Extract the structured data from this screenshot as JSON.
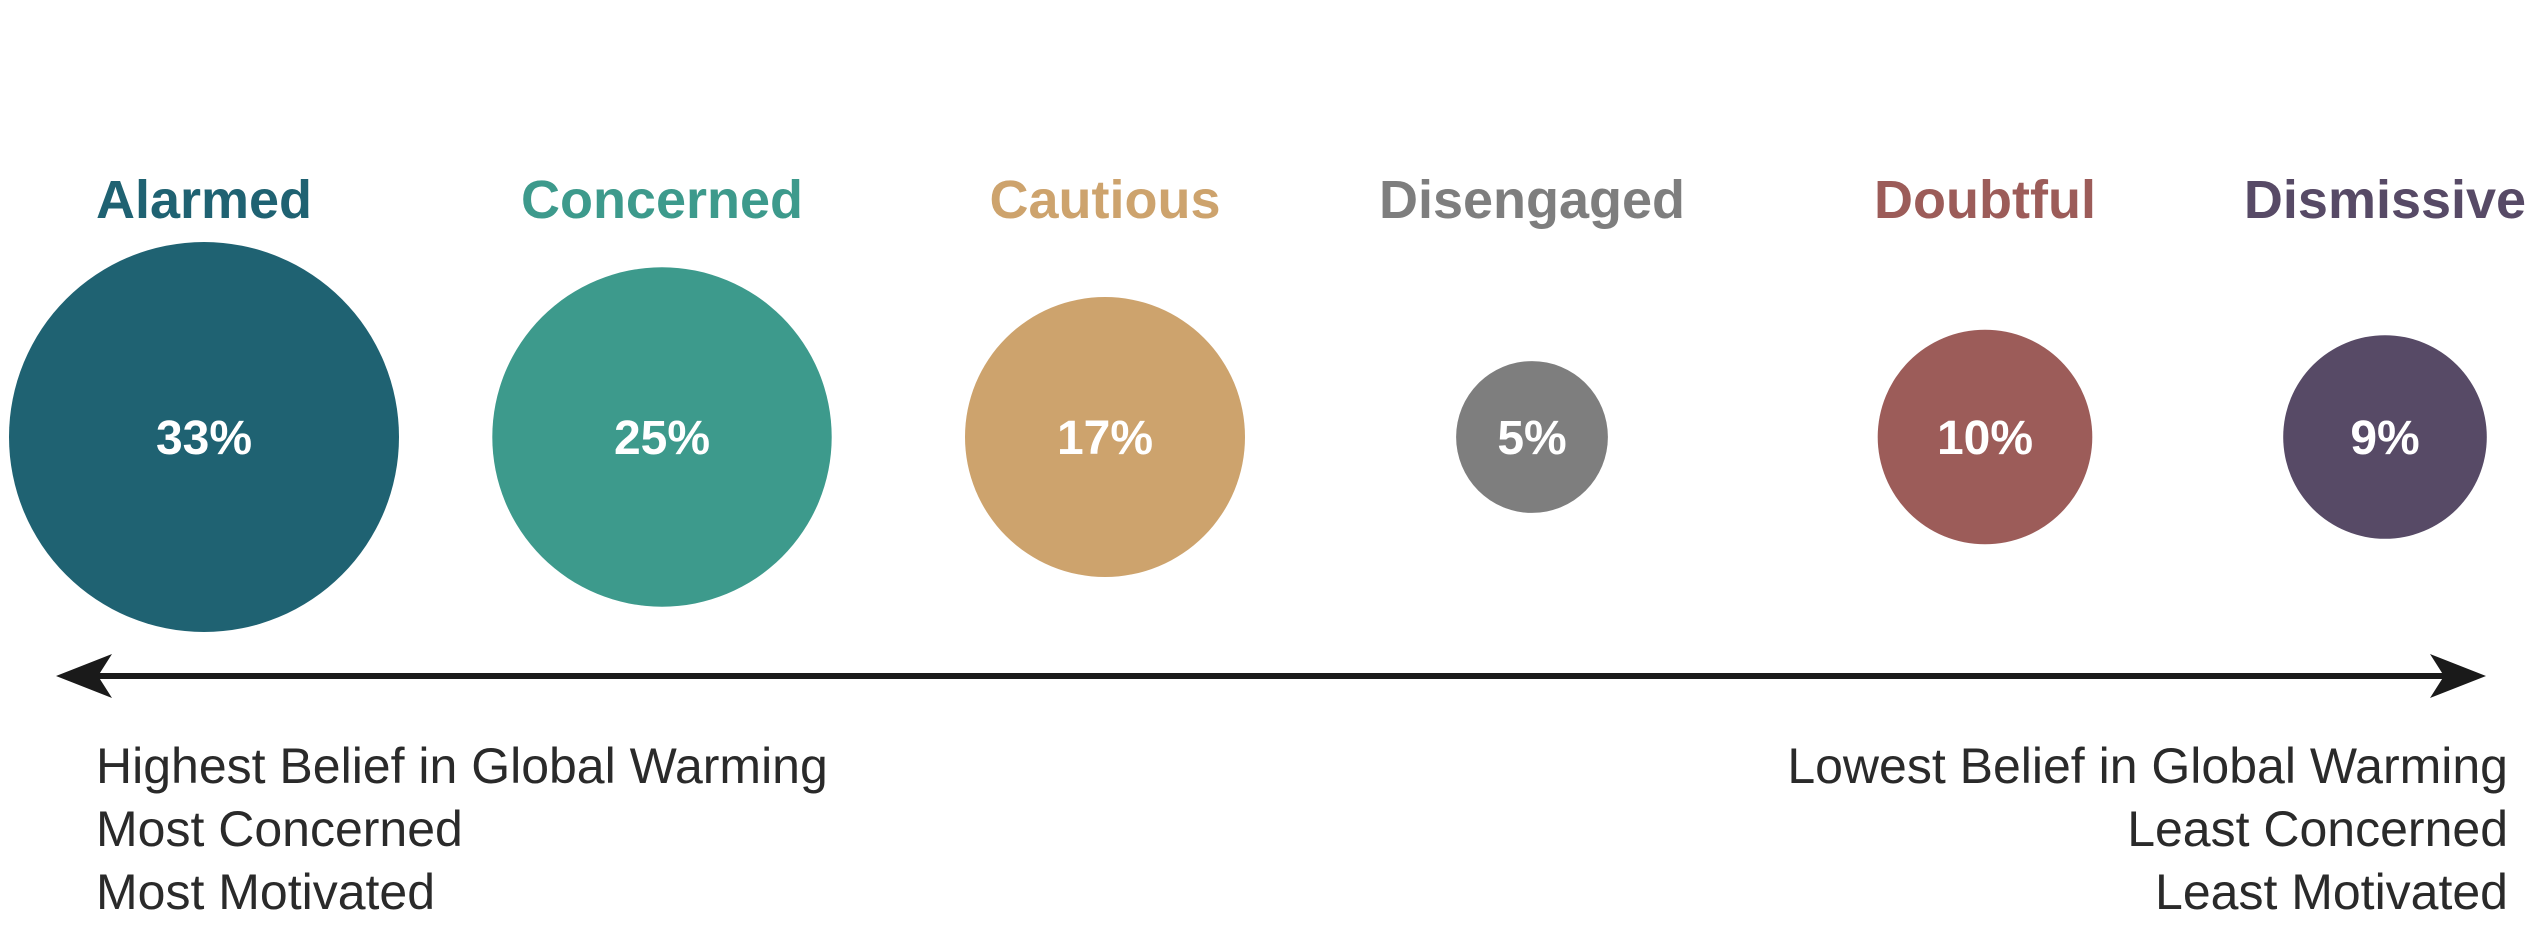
{
  "chart_data": {
    "type": "bubble",
    "categories": [
      "Alarmed",
      "Concerned",
      "Cautious",
      "Disengaged",
      "Doubtful",
      "Dismissive"
    ],
    "values": [
      33,
      25,
      17,
      5,
      10,
      9
    ],
    "value_labels": [
      "33%",
      "25%",
      "17%",
      "5%",
      "10%",
      "9%"
    ],
    "colors": [
      "#1f6272",
      "#3d9a8c",
      "#cda36d",
      "#7e7e7e",
      "#9c5c59",
      "#574a66"
    ],
    "axis": {
      "type": "bidirectional-arrow",
      "left_labels": [
        "Highest Belief in Global Warming",
        "Most Concerned",
        "Most Motivated"
      ],
      "right_labels": [
        "Lowest Belief in Global Warming",
        "Least Concerned",
        "Least Motivated"
      ]
    }
  },
  "colors": {
    "axis": "#1a1a1a",
    "caption_text": "#2a2a2a"
  }
}
